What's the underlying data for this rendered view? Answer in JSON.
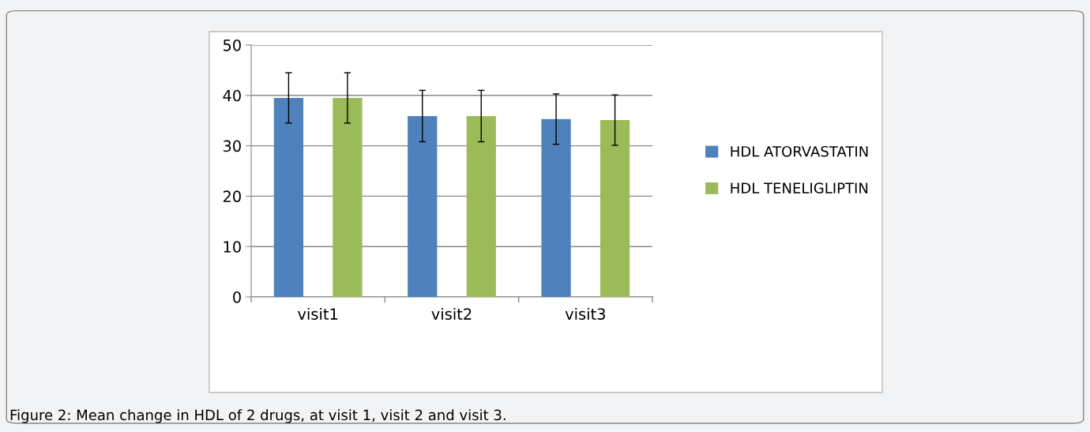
{
  "chart_data": {
    "type": "bar",
    "categories": [
      "visit1",
      "visit2",
      "visit3"
    ],
    "series": [
      {
        "name": "HDL ATORVASTATIN",
        "color": "#4f81bd",
        "values": [
          39.5,
          35.9,
          35.3
        ],
        "errors": [
          5,
          5.1,
          5
        ]
      },
      {
        "name": "HDL TENELIGLIPTIN",
        "color": "#9bbb59",
        "values": [
          39.5,
          35.9,
          35.1
        ],
        "errors": [
          5,
          5.1,
          5
        ]
      }
    ],
    "ylim": [
      0,
      50
    ],
    "yticks": [
      0,
      10,
      20,
      30,
      40,
      50
    ],
    "grid": "y",
    "legend": "right",
    "annotations": [
      "Figure 2: Mean change in HDL of 2 drugs, at visit 1, visit 2 and visit 3."
    ]
  }
}
